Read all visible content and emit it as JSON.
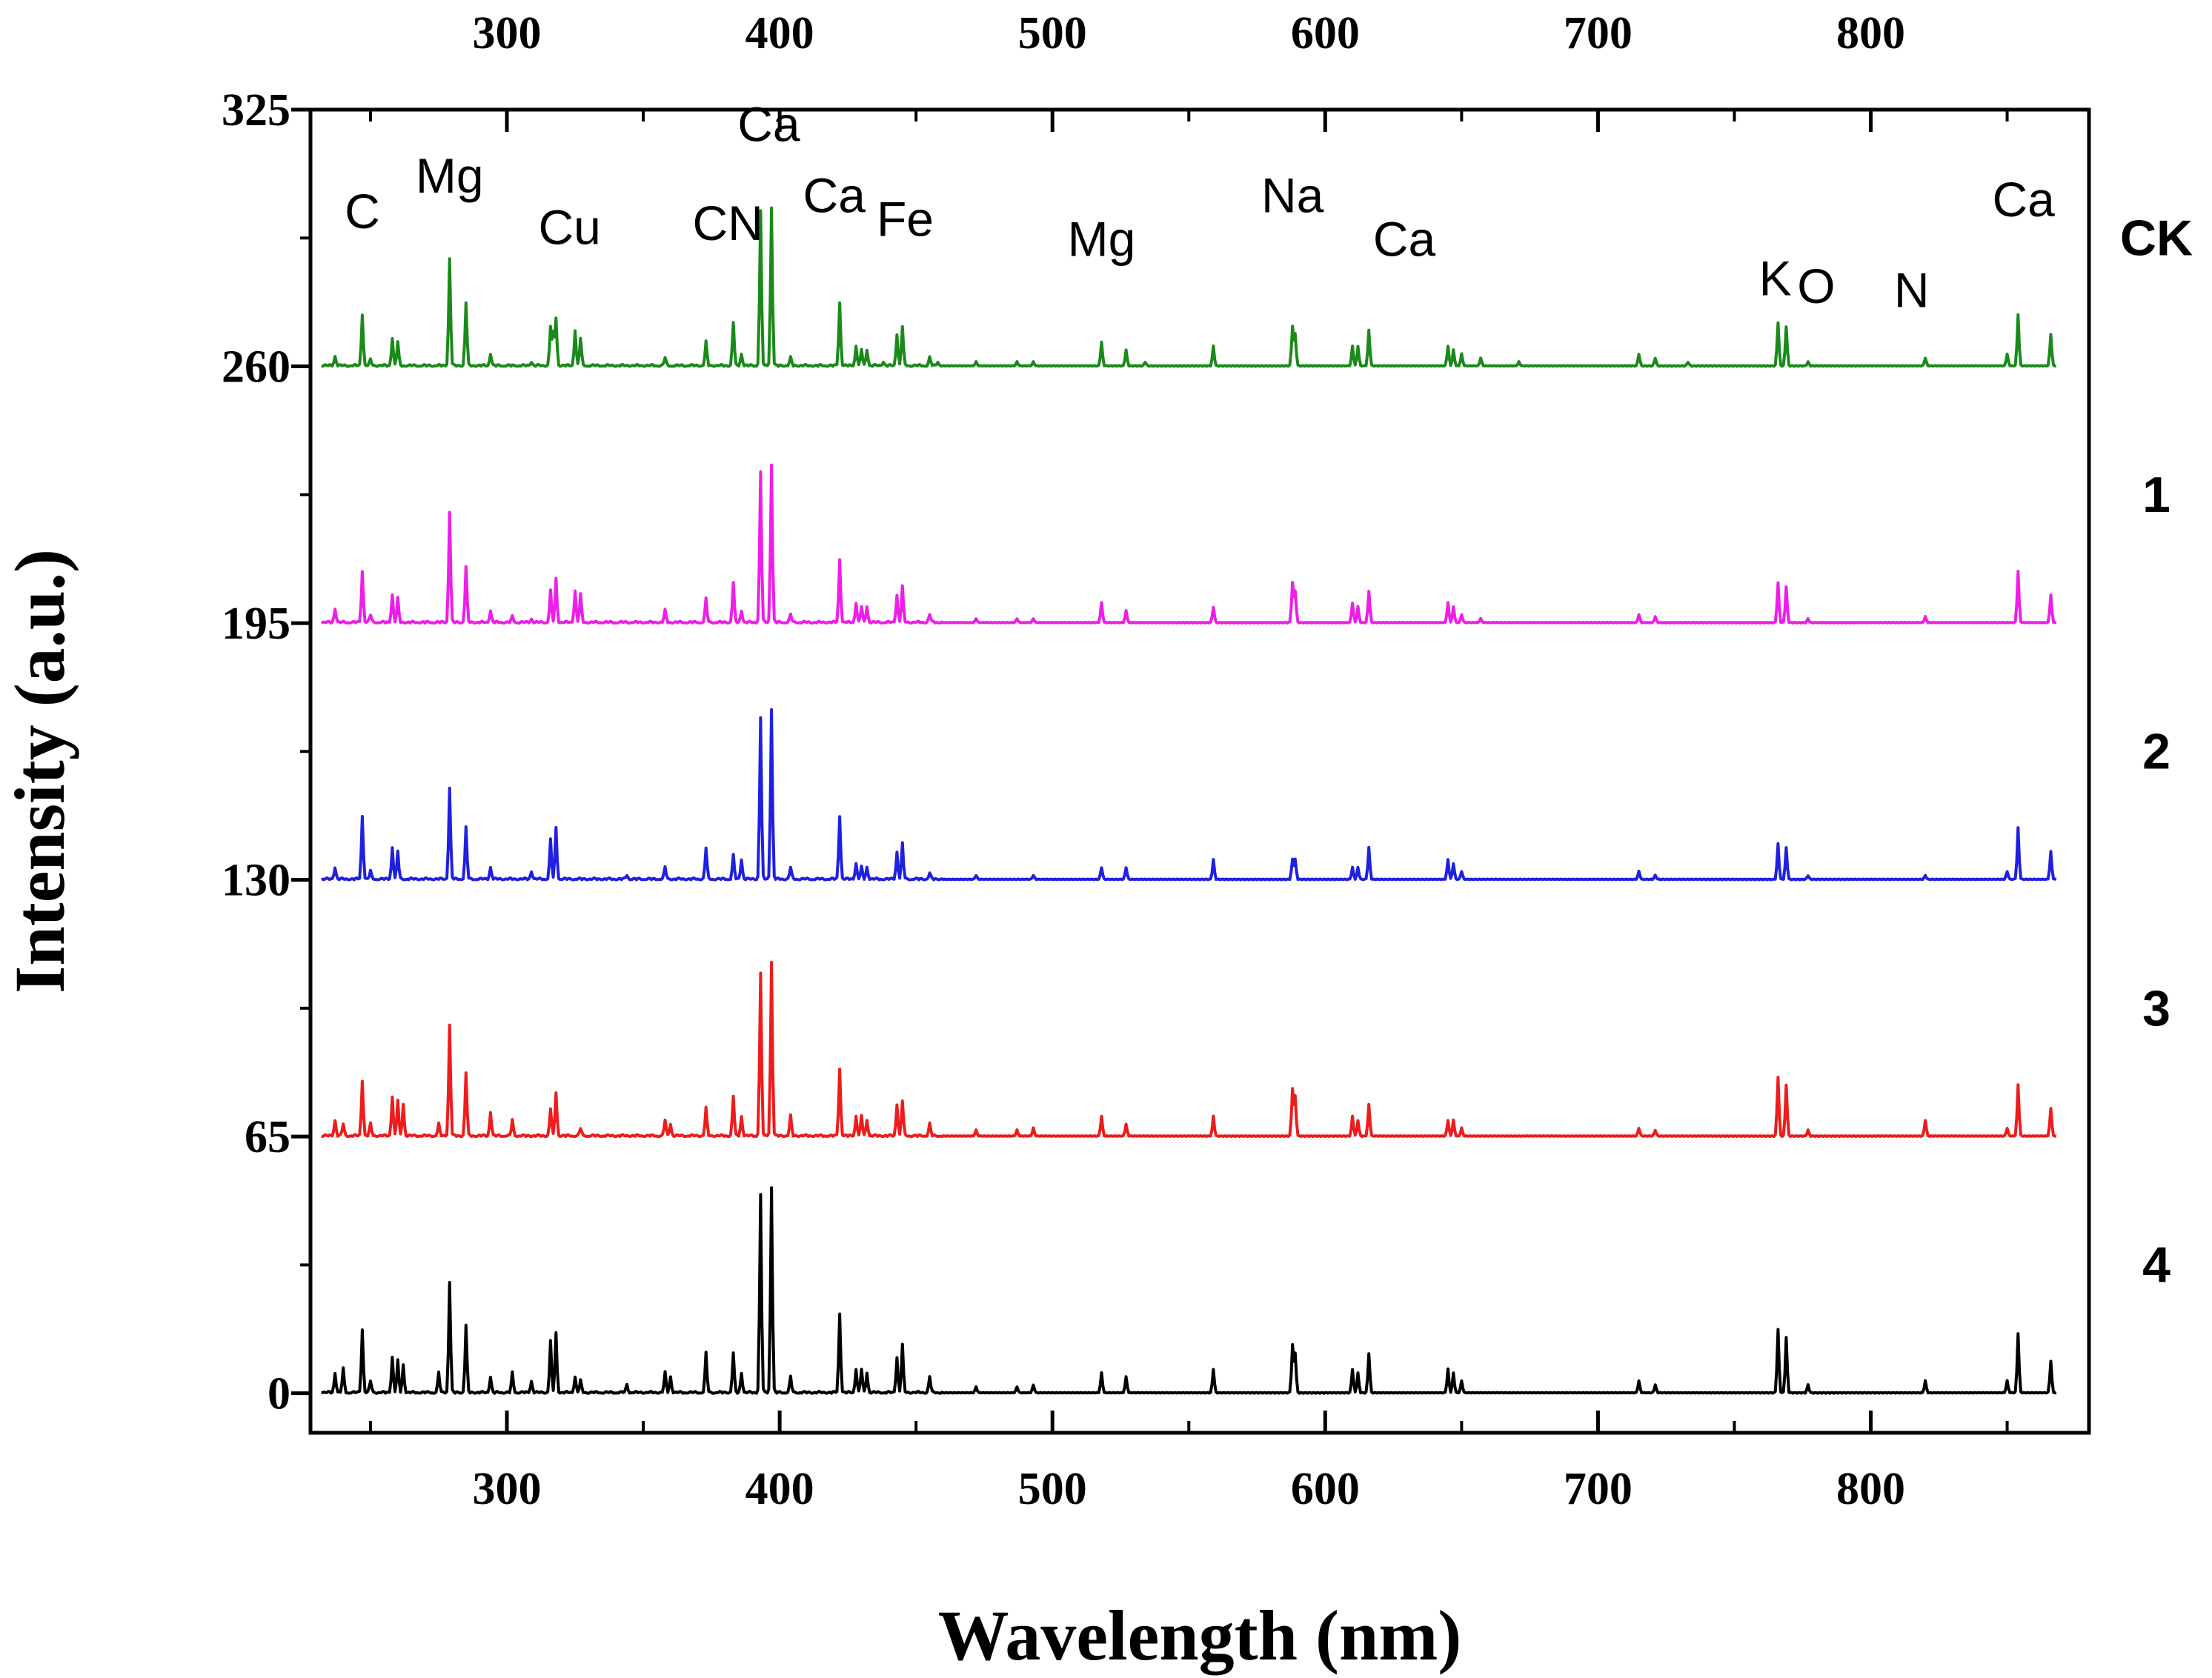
{
  "chart_data": {
    "type": "line",
    "title": "",
    "xlabel": "Wavelength (nm)",
    "ylabel": "Intensity (a.u.)",
    "xlim": [
      228,
      880
    ],
    "ylim": [
      -10,
      325
    ],
    "xticks": [
      300,
      400,
      500,
      600,
      700,
      800
    ],
    "xtick_labels": [
      "300",
      "400",
      "500",
      "600",
      "700",
      "800"
    ],
    "top_xtick_labels": [
      "300",
      "400",
      "500",
      "600",
      "700",
      "800"
    ],
    "yticks": [
      0,
      65,
      130,
      195,
      260,
      325
    ],
    "ytick_labels": [
      "0",
      "65",
      "130",
      "195",
      "260",
      "325"
    ],
    "grid": false,
    "stacked_offset": 65,
    "series": [
      {
        "name": "CK",
        "color": "#1a8a1a",
        "offset": 260,
        "peaks": [
          [
            237,
            2.5
          ],
          [
            247,
            13
          ],
          [
            250,
            1.5
          ],
          [
            258,
            7
          ],
          [
            260,
            6
          ],
          [
            279,
            27
          ],
          [
            285,
            16
          ],
          [
            294,
            3
          ],
          [
            309,
            1
          ],
          [
            316,
            10
          ],
          [
            317,
            8
          ],
          [
            318,
            12
          ],
          [
            325,
            9
          ],
          [
            327,
            7
          ],
          [
            358,
            2
          ],
          [
            373,
            6
          ],
          [
            383,
            11
          ],
          [
            386,
            3
          ],
          [
            393,
            39
          ],
          [
            397,
            40
          ],
          [
            404,
            2
          ],
          [
            422,
            16
          ],
          [
            428,
            5
          ],
          [
            430,
            4
          ],
          [
            432,
            4
          ],
          [
            438,
            1
          ],
          [
            443,
            8
          ],
          [
            445,
            10
          ],
          [
            455,
            2
          ],
          [
            458,
            1
          ],
          [
            472,
            1
          ],
          [
            487,
            1
          ],
          [
            493,
            1
          ],
          [
            518,
            6
          ],
          [
            527,
            4
          ],
          [
            534,
            1
          ],
          [
            559,
            5
          ],
          [
            588,
            10
          ],
          [
            589,
            8
          ],
          [
            610,
            5
          ],
          [
            612,
            5
          ],
          [
            616,
            9
          ],
          [
            645,
            5
          ],
          [
            647,
            4
          ],
          [
            650,
            3
          ],
          [
            657,
            2
          ],
          [
            671,
            1
          ],
          [
            715,
            3
          ],
          [
            721,
            2
          ],
          [
            733,
            1
          ],
          [
            766,
            11
          ],
          [
            769,
            10
          ],
          [
            777,
            1
          ],
          [
            820,
            2
          ],
          [
            850,
            3
          ],
          [
            854,
            13
          ],
          [
            866,
            8
          ]
        ]
      },
      {
        "name": "1",
        "color": "#ee1ee8",
        "offset": 195,
        "peaks": [
          [
            237,
            3.5
          ],
          [
            247,
            13
          ],
          [
            250,
            2
          ],
          [
            258,
            7
          ],
          [
            260,
            6
          ],
          [
            279,
            28
          ],
          [
            285,
            14
          ],
          [
            294,
            3
          ],
          [
            302,
            1.5
          ],
          [
            309,
            1
          ],
          [
            316,
            8
          ],
          [
            318,
            11
          ],
          [
            325,
            8
          ],
          [
            327,
            7
          ],
          [
            358,
            3
          ],
          [
            373,
            6
          ],
          [
            383,
            10
          ],
          [
            386,
            3
          ],
          [
            393,
            38
          ],
          [
            397,
            40
          ],
          [
            404,
            2
          ],
          [
            422,
            16
          ],
          [
            428,
            5
          ],
          [
            430,
            4
          ],
          [
            432,
            4
          ],
          [
            443,
            7
          ],
          [
            445,
            9
          ],
          [
            455,
            2
          ],
          [
            472,
            1
          ],
          [
            487,
            1
          ],
          [
            493,
            1
          ],
          [
            518,
            5
          ],
          [
            527,
            3
          ],
          [
            559,
            4
          ],
          [
            588,
            10
          ],
          [
            589,
            8
          ],
          [
            610,
            5
          ],
          [
            612,
            4
          ],
          [
            616,
            8
          ],
          [
            645,
            5
          ],
          [
            647,
            4
          ],
          [
            650,
            2
          ],
          [
            657,
            1
          ],
          [
            715,
            2
          ],
          [
            721,
            1.5
          ],
          [
            766,
            10
          ],
          [
            769,
            9
          ],
          [
            777,
            1
          ],
          [
            820,
            1.5
          ],
          [
            854,
            13
          ],
          [
            866,
            7
          ]
        ]
      },
      {
        "name": "2",
        "color": "#2020e0",
        "offset": 130,
        "peaks": [
          [
            237,
            3
          ],
          [
            247,
            16
          ],
          [
            250,
            2
          ],
          [
            258,
            8
          ],
          [
            260,
            7
          ],
          [
            279,
            23
          ],
          [
            285,
            13
          ],
          [
            294,
            3
          ],
          [
            309,
            2
          ],
          [
            316,
            10
          ],
          [
            318,
            13
          ],
          [
            344,
            1
          ],
          [
            358,
            3
          ],
          [
            373,
            8
          ],
          [
            383,
            6
          ],
          [
            386,
            5
          ],
          [
            393,
            41
          ],
          [
            397,
            43
          ],
          [
            404,
            3
          ],
          [
            422,
            16
          ],
          [
            428,
            4
          ],
          [
            430,
            3
          ],
          [
            432,
            3
          ],
          [
            443,
            7
          ],
          [
            445,
            9
          ],
          [
            455,
            1.5
          ],
          [
            472,
            1
          ],
          [
            493,
            1
          ],
          [
            518,
            3
          ],
          [
            527,
            3
          ],
          [
            559,
            5
          ],
          [
            588,
            5
          ],
          [
            589,
            5
          ],
          [
            610,
            3
          ],
          [
            612,
            3
          ],
          [
            616,
            8
          ],
          [
            645,
            5
          ],
          [
            647,
            4
          ],
          [
            650,
            2
          ],
          [
            715,
            2
          ],
          [
            721,
            1
          ],
          [
            766,
            9
          ],
          [
            769,
            8
          ],
          [
            777,
            1
          ],
          [
            820,
            1
          ],
          [
            850,
            2
          ],
          [
            854,
            13
          ],
          [
            866,
            7
          ]
        ]
      },
      {
        "name": "3",
        "color": "#ee1c1c",
        "offset": 65,
        "peaks": [
          [
            231,
            3
          ],
          [
            237,
            4
          ],
          [
            240,
            3
          ],
          [
            247,
            14
          ],
          [
            250,
            3
          ],
          [
            258,
            10
          ],
          [
            260,
            9
          ],
          [
            262,
            8
          ],
          [
            275,
            3
          ],
          [
            279,
            28
          ],
          [
            285,
            16
          ],
          [
            294,
            6
          ],
          [
            302,
            4
          ],
          [
            316,
            7
          ],
          [
            318,
            11
          ],
          [
            327,
            2
          ],
          [
            358,
            4
          ],
          [
            360,
            3
          ],
          [
            373,
            7
          ],
          [
            383,
            10
          ],
          [
            386,
            5
          ],
          [
            393,
            41
          ],
          [
            397,
            44
          ],
          [
            404,
            5
          ],
          [
            422,
            17
          ],
          [
            428,
            5
          ],
          [
            430,
            5
          ],
          [
            432,
            4
          ],
          [
            443,
            8
          ],
          [
            445,
            9
          ],
          [
            455,
            3
          ],
          [
            472,
            1.5
          ],
          [
            487,
            1.5
          ],
          [
            493,
            2
          ],
          [
            518,
            5
          ],
          [
            527,
            3
          ],
          [
            559,
            5
          ],
          [
            588,
            12
          ],
          [
            589,
            10
          ],
          [
            610,
            5
          ],
          [
            612,
            4
          ],
          [
            616,
            8
          ],
          [
            645,
            4
          ],
          [
            647,
            4
          ],
          [
            650,
            2
          ],
          [
            715,
            2
          ],
          [
            721,
            1.5
          ],
          [
            766,
            15
          ],
          [
            769,
            13
          ],
          [
            777,
            1.5
          ],
          [
            820,
            4
          ],
          [
            850,
            2
          ],
          [
            854,
            13
          ],
          [
            866,
            7
          ]
        ]
      },
      {
        "name": "4",
        "color": "#000000",
        "offset": 0,
        "peaks": [
          [
            231,
            3
          ],
          [
            237,
            5
          ],
          [
            240,
            6
          ],
          [
            247,
            16
          ],
          [
            250,
            3
          ],
          [
            258,
            9
          ],
          [
            260,
            8
          ],
          [
            262,
            7
          ],
          [
            275,
            5
          ],
          [
            279,
            28
          ],
          [
            285,
            17
          ],
          [
            294,
            4
          ],
          [
            302,
            5
          ],
          [
            309,
            3
          ],
          [
            316,
            13
          ],
          [
            318,
            15
          ],
          [
            325,
            4
          ],
          [
            327,
            3
          ],
          [
            344,
            2
          ],
          [
            358,
            5
          ],
          [
            360,
            4
          ],
          [
            373,
            10
          ],
          [
            383,
            10
          ],
          [
            386,
            5
          ],
          [
            393,
            50
          ],
          [
            397,
            52
          ],
          [
            404,
            4
          ],
          [
            422,
            20
          ],
          [
            428,
            6
          ],
          [
            430,
            6
          ],
          [
            432,
            5
          ],
          [
            443,
            9
          ],
          [
            445,
            12
          ],
          [
            455,
            4
          ],
          [
            472,
            1.5
          ],
          [
            487,
            1.5
          ],
          [
            493,
            2
          ],
          [
            518,
            5
          ],
          [
            527,
            4
          ],
          [
            559,
            6
          ],
          [
            588,
            12
          ],
          [
            589,
            10
          ],
          [
            610,
            6
          ],
          [
            612,
            5
          ],
          [
            616,
            10
          ],
          [
            645,
            6
          ],
          [
            647,
            5
          ],
          [
            650,
            3
          ],
          [
            715,
            3
          ],
          [
            721,
            2
          ],
          [
            766,
            16
          ],
          [
            769,
            14
          ],
          [
            777,
            2
          ],
          [
            820,
            3
          ],
          [
            850,
            3
          ],
          [
            854,
            15
          ],
          [
            866,
            8
          ]
        ]
      }
    ],
    "annotations": [
      {
        "text": "C",
        "x": 247,
        "y": 295
      },
      {
        "text": "Mg",
        "x": 279,
        "y": 304
      },
      {
        "text": "Cu",
        "x": 323,
        "y": 291
      },
      {
        "text": "CN",
        "x": 381,
        "y": 292
      },
      {
        "text": "Ca",
        "x": 396,
        "y": 317
      },
      {
        "text": "Ca",
        "x": 420,
        "y": 299
      },
      {
        "text": "Fe",
        "x": 446,
        "y": 293
      },
      {
        "text": "Mg",
        "x": 518,
        "y": 288
      },
      {
        "text": "Na",
        "x": 588,
        "y": 299
      },
      {
        "text": "Ca",
        "x": 629,
        "y": 288
      },
      {
        "text": "K",
        "x": 765,
        "y": 278
      },
      {
        "text": "O",
        "x": 780,
        "y": 276
      },
      {
        "text": "N",
        "x": 815,
        "y": 275
      },
      {
        "text": "Ca",
        "x": 856,
        "y": 298
      }
    ]
  }
}
